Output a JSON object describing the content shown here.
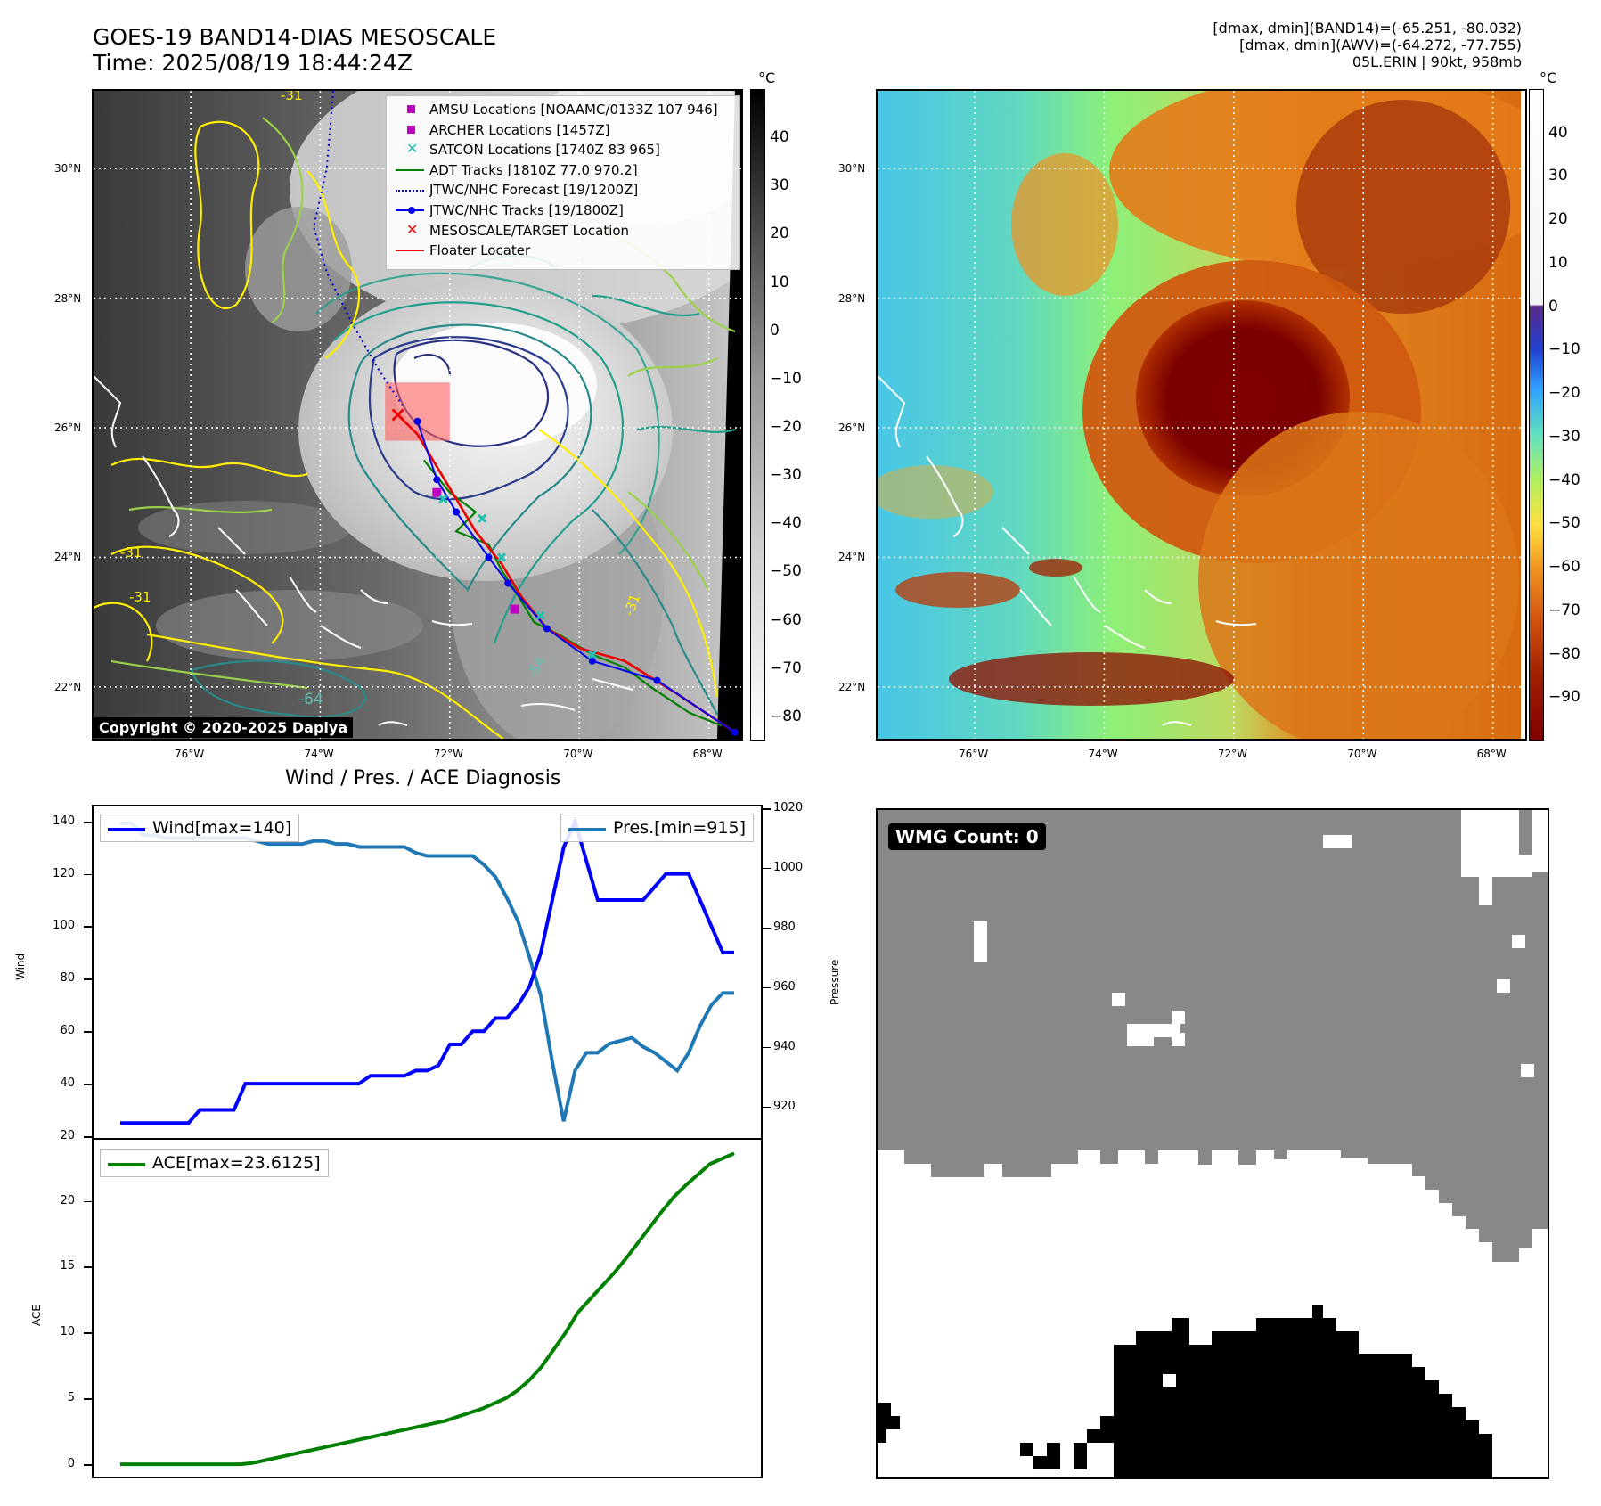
{
  "header": {
    "title_line1": "GOES-19 BAND14-DIAS MESOSCALE",
    "title_line2": "Time: 2025/08/19 18:44:24Z",
    "info_line1": "[dmax, dmin](BAND14)=(-65.251, -80.032)",
    "info_line2": "[dmax, dmin](AWV)=(-64.272, -77.755)",
    "info_line3": "05L.ERIN | 90kt, 958mb"
  },
  "map": {
    "lat_labels": [
      "30°N",
      "28°N",
      "26°N",
      "24°N",
      "22°N"
    ],
    "lat_values": [
      30,
      28,
      26,
      24,
      22
    ],
    "lon_labels": [
      "76°W",
      "74°W",
      "72°W",
      "70°W",
      "68°W"
    ],
    "lon_values": [
      -76,
      -74,
      -72,
      -70,
      -68
    ],
    "extent": {
      "lon_min": -77.5,
      "lon_max": -67.5,
      "lat_min": 21.2,
      "lat_max": 31.2
    },
    "contour_labels": [
      "-31",
      "-31",
      "-31",
      "-31",
      "-64",
      "-54"
    ],
    "copyright": "Copyright © 2020-2025 Dapiya",
    "legend": [
      {
        "label": "AMSU Locations [NOAAMC/0133Z 107 946]",
        "symbol": "square",
        "color": "#c000c0"
      },
      {
        "label": "ARCHER Locations [1457Z]",
        "symbol": "square",
        "color": "#c000c0"
      },
      {
        "label": "SATCON Locations [1740Z 83 965]",
        "symbol": "x",
        "color": "#20c0b0"
      },
      {
        "label": "ADT Tracks [1810Z 77.0 970.2]",
        "symbol": "line",
        "color": "#008000"
      },
      {
        "label": "JTWC/NHC Forecast [19/1200Z]",
        "symbol": "dotted",
        "color": "#0000dd"
      },
      {
        "label": "JTWC/NHC Tracks [19/1800Z]",
        "symbol": "line-dot",
        "color": "#0000ee"
      },
      {
        "label": "MESOSCALE/TARGET Location",
        "symbol": "x",
        "color": "#ee0000"
      },
      {
        "label": "Floater Locater",
        "symbol": "line",
        "color": "#ee0000"
      }
    ],
    "track_nhc": [
      [
        -72.5,
        26.1
      ],
      [
        -72.2,
        25.2
      ],
      [
        -71.9,
        24.7
      ],
      [
        -71.4,
        24.0
      ],
      [
        -71.1,
        23.6
      ],
      [
        -70.5,
        22.9
      ],
      [
        -69.8,
        22.4
      ],
      [
        -68.8,
        22.1
      ],
      [
        -67.6,
        21.3
      ]
    ],
    "track_red": [
      [
        -72.8,
        26.2
      ],
      [
        -72.5,
        25.9
      ],
      [
        -72.2,
        25.4
      ],
      [
        -71.9,
        24.9
      ],
      [
        -71.6,
        24.4
      ],
      [
        -71.2,
        23.9
      ],
      [
        -70.9,
        23.4
      ],
      [
        -70.5,
        22.9
      ],
      [
        -70.0,
        22.6
      ],
      [
        -69.3,
        22.4
      ],
      [
        -68.5,
        21.9
      ],
      [
        -67.6,
        21.3
      ]
    ],
    "track_adt": [
      [
        -72.4,
        25.5
      ],
      [
        -72.0,
        25.0
      ],
      [
        -71.6,
        24.7
      ],
      [
        -71.9,
        24.4
      ],
      [
        -71.4,
        24.2
      ],
      [
        -71.2,
        23.8
      ],
      [
        -71.0,
        23.5
      ],
      [
        -70.7,
        23.0
      ],
      [
        -70.3,
        22.8
      ],
      [
        -69.8,
        22.5
      ],
      [
        -69.3,
        22.3
      ],
      [
        -68.9,
        22.0
      ],
      [
        -68.3,
        21.6
      ],
      [
        -67.8,
        21.4
      ]
    ],
    "forecast": [
      [
        -73.8,
        31.2
      ],
      [
        -73.9,
        30.0
      ],
      [
        -74.1,
        29.1
      ],
      [
        -73.9,
        28.4
      ],
      [
        -73.5,
        27.6
      ],
      [
        -73.1,
        26.9
      ],
      [
        -72.7,
        26.3
      ]
    ],
    "target_box": {
      "lon0": -73.0,
      "lon1": -72.0,
      "lat0": 25.8,
      "lat1": 26.7
    },
    "target": [
      -72.8,
      26.2
    ],
    "amsu": [
      [
        -72.2,
        25.0
      ],
      [
        -71.0,
        23.2
      ]
    ],
    "satcon": [
      [
        -72.1,
        24.9
      ],
      [
        -71.5,
        24.6
      ],
      [
        -71.2,
        24.0
      ],
      [
        -70.6,
        23.1
      ],
      [
        -69.8,
        22.5
      ]
    ]
  },
  "colorbars": {
    "unit": "°C",
    "left_ticks": [
      "40",
      "30",
      "20",
      "10",
      "0",
      "−10",
      "−20",
      "−30",
      "−40",
      "−50",
      "−60",
      "−70",
      "−80"
    ],
    "left_values": [
      40,
      30,
      20,
      10,
      0,
      -10,
      -20,
      -30,
      -40,
      -50,
      -60,
      -70,
      -80
    ],
    "left_range": [
      -85,
      50
    ],
    "right_ticks": [
      "40",
      "30",
      "20",
      "10",
      "0",
      "−10",
      "−20",
      "−30",
      "−40",
      "−50",
      "−60",
      "−70",
      "−80",
      "−90"
    ],
    "right_values": [
      40,
      30,
      20,
      10,
      0,
      -10,
      -20,
      -30,
      -40,
      -50,
      -60,
      -70,
      -80,
      -90
    ],
    "right_range": [
      -100,
      50
    ]
  },
  "chart_data": [
    {
      "type": "line",
      "title": "Wind / Pres. / ACE Diagnosis",
      "ylabel": "Wind",
      "y2label": "Pressure",
      "ylim": [
        20,
        145
      ],
      "y2lim": [
        910,
        1020
      ],
      "yticks": [
        20,
        40,
        60,
        80,
        100,
        120,
        140
      ],
      "y2ticks": [
        920,
        940,
        960,
        980,
        1000,
        1020
      ],
      "series": [
        {
          "name": "Wind[max=140]",
          "color": "#0000ff",
          "values": [
            25,
            25,
            25,
            25,
            25,
            25,
            25,
            30,
            30,
            30,
            30,
            40,
            40,
            40,
            40,
            40,
            40,
            40,
            40,
            40,
            40,
            40,
            43,
            43,
            43,
            43,
            45,
            45,
            47,
            55,
            55,
            60,
            60,
            65,
            65,
            70,
            77,
            90,
            110,
            130,
            140,
            125,
            110,
            110,
            110,
            110,
            110,
            115,
            120,
            120,
            120,
            110,
            100,
            90,
            90
          ]
        },
        {
          "name": "Pres.[min=915]",
          "color": "#1f77b4",
          "axis": "y2",
          "values": [
            1015,
            1015,
            1011,
            1011,
            1010,
            1010,
            1010,
            1010,
            1010,
            1010,
            1010,
            1010,
            1009,
            1008,
            1008,
            1008,
            1008,
            1009,
            1009,
            1008,
            1008,
            1007,
            1007,
            1007,
            1007,
            1007,
            1005,
            1004,
            1004,
            1004,
            1004,
            1004,
            1001,
            997,
            990,
            982,
            970,
            957,
            935,
            915,
            932,
            938,
            938,
            941,
            942,
            943,
            940,
            938,
            935,
            932,
            938,
            947,
            954,
            958,
            958
          ]
        }
      ]
    },
    {
      "type": "line",
      "ylabel": "ACE",
      "ylim": [
        -0.8,
        24.5
      ],
      "yticks": [
        0,
        5,
        10,
        15,
        20
      ],
      "series": [
        {
          "name": "ACE[max=23.6125]",
          "color": "#008000",
          "values": [
            0,
            0,
            0,
            0,
            0,
            0,
            0,
            0,
            0,
            0,
            0,
            0.1,
            0.3,
            0.5,
            0.7,
            0.9,
            1.1,
            1.3,
            1.5,
            1.7,
            1.9,
            2.1,
            2.3,
            2.5,
            2.7,
            2.9,
            3.1,
            3.3,
            3.6,
            3.9,
            4.2,
            4.6,
            5.0,
            5.6,
            6.4,
            7.4,
            8.7,
            10.0,
            11.5,
            12.5,
            13.5,
            14.5,
            15.6,
            16.8,
            18.0,
            19.2,
            20.3,
            21.2,
            22.0,
            22.8,
            23.2,
            23.6
          ]
        }
      ]
    }
  ],
  "wmg": {
    "label": "WMG Count: 0"
  }
}
